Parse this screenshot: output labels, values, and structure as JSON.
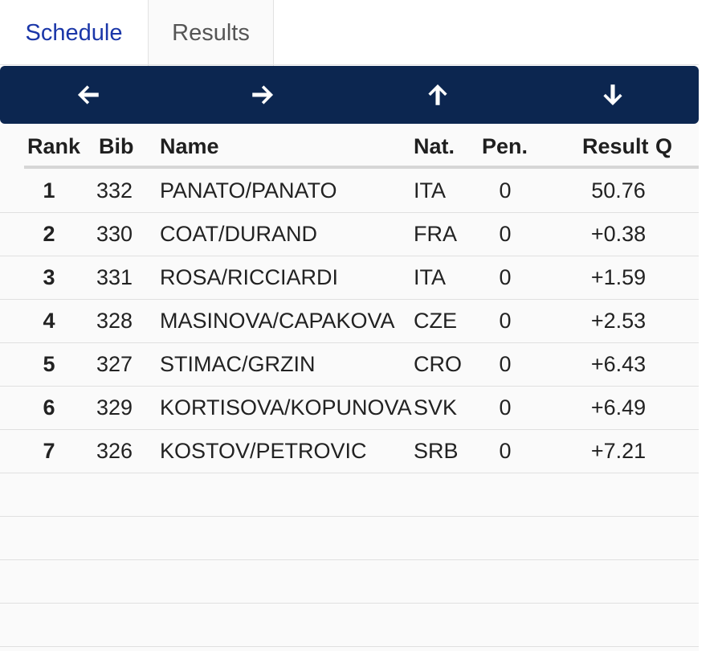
{
  "tabs": [
    {
      "label": "Schedule",
      "active": true
    },
    {
      "label": "Results",
      "active": false
    }
  ],
  "toolbar": {
    "icons": [
      "arrow-left-icon",
      "arrow-right-icon",
      "arrow-up-icon",
      "arrow-down-icon"
    ],
    "background": "#0c2650"
  },
  "columns": {
    "rank": "Rank",
    "bib": "Bib",
    "name": "Name",
    "nat": "Nat.",
    "pen": "Pen.",
    "result": "Result",
    "q": "Q"
  },
  "rows": [
    {
      "rank": "1",
      "bib": "332",
      "name": "PANATO/PANATO",
      "nat": "ITA",
      "pen": "0",
      "result": "50.76"
    },
    {
      "rank": "2",
      "bib": "330",
      "name": "COAT/DURAND",
      "nat": "FRA",
      "pen": "0",
      "result": "+0.38"
    },
    {
      "rank": "3",
      "bib": "331",
      "name": "ROSA/RICCIARDI",
      "nat": "ITA",
      "pen": "0",
      "result": "+1.59"
    },
    {
      "rank": "4",
      "bib": "328",
      "name": "MASINOVA/CAPAKOVA",
      "nat": "CZE",
      "pen": "0",
      "result": "+2.53"
    },
    {
      "rank": "5",
      "bib": "327",
      "name": "STIMAC/GRZIN",
      "nat": "CRO",
      "pen": "0",
      "result": "+6.43"
    },
    {
      "rank": "6",
      "bib": "329",
      "name": "KORTISOVA/KOPUNOVA",
      "nat": "SVK",
      "pen": "0",
      "result": "+6.49"
    },
    {
      "rank": "7",
      "bib": "326",
      "name": "KOSTOV/PETROVIC",
      "nat": "SRB",
      "pen": "0",
      "result": "+7.21"
    }
  ],
  "colors": {
    "active_tab": "#1a36a8",
    "inactive_tab": "#555555"
  }
}
